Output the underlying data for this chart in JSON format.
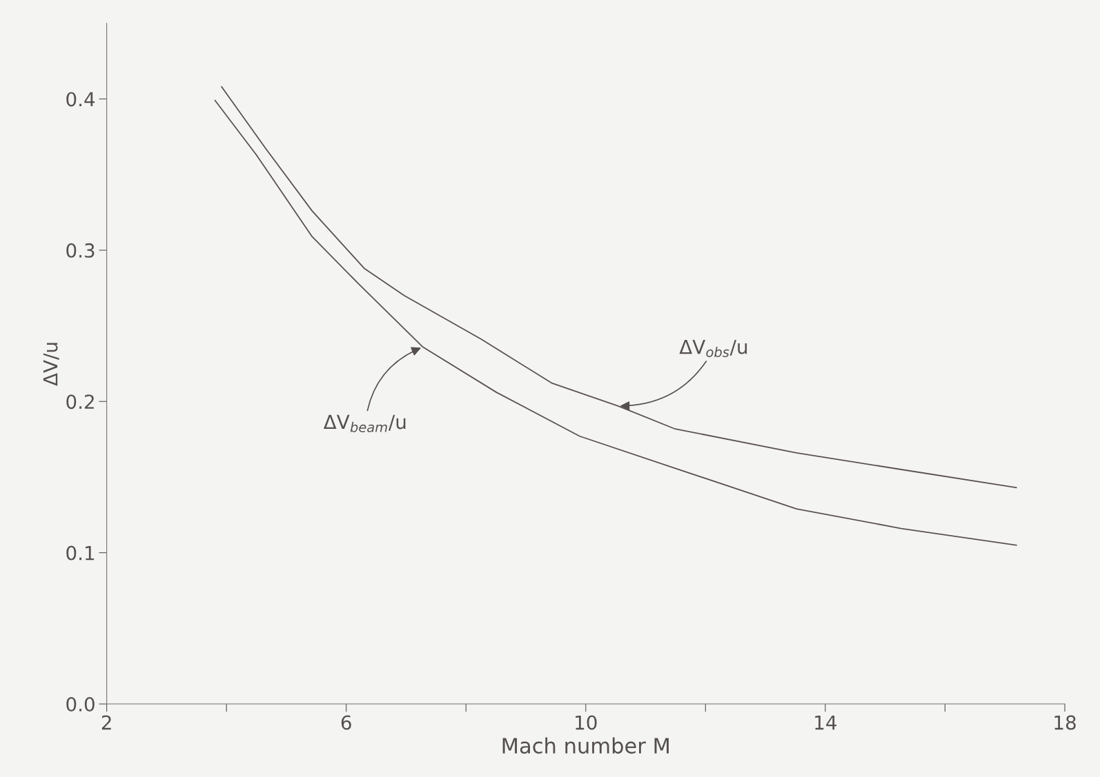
{
  "chart_data": {
    "type": "line",
    "xlabel": "Mach number M",
    "ylabel": "ΔV/u",
    "x": [
      3.81,
      4.5,
      5.43,
      6.2,
      7.28,
      8.51,
      9.9,
      11.48,
      13.52,
      15.27,
      17.19
    ],
    "series": [
      {
        "color": "#5a5252",
        "x": [
          3.92,
          4.66,
          5.43,
          6.3,
          6.97,
          8.26,
          9.44,
          10.54,
          11.48,
          13.52,
          15.27,
          17.19
        ],
        "values": [
          0.408,
          0.367,
          0.326,
          0.288,
          0.27,
          0.241,
          0.212,
          0.197,
          0.182,
          0.166,
          0.155,
          0.143
        ]
      },
      {
        "color": "#5a5252",
        "values": [
          0.399,
          0.363,
          0.309,
          0.278,
          0.236,
          0.206,
          0.177,
          0.156,
          0.129,
          0.116,
          0.105
        ]
      }
    ],
    "annotations": [
      {
        "text": "ΔV$_{beam}$/u",
        "x": 7.28,
        "y": 0.236
      },
      {
        "text": "ΔV$_{obs}$/u",
        "x": 10.54,
        "y": 0.197
      }
    ],
    "xlim": [
      2,
      18
    ],
    "xticks": [
      2,
      {
        "value": 4,
        "label": null
      },
      6,
      {
        "value": 8,
        "label": null
      },
      10,
      {
        "value": 12,
        "label": null
      },
      14,
      {
        "value": 16,
        "label": null
      },
      18
    ],
    "ylim": [
      0.0,
      0.45
    ],
    "yticks": [
      {
        "value": 0.0,
        "label": "0.0"
      },
      0.1,
      0.2,
      0.3,
      0.4
    ],
    "grid": false,
    "legend": false,
    "marker": "none",
    "line_style": "solid"
  }
}
